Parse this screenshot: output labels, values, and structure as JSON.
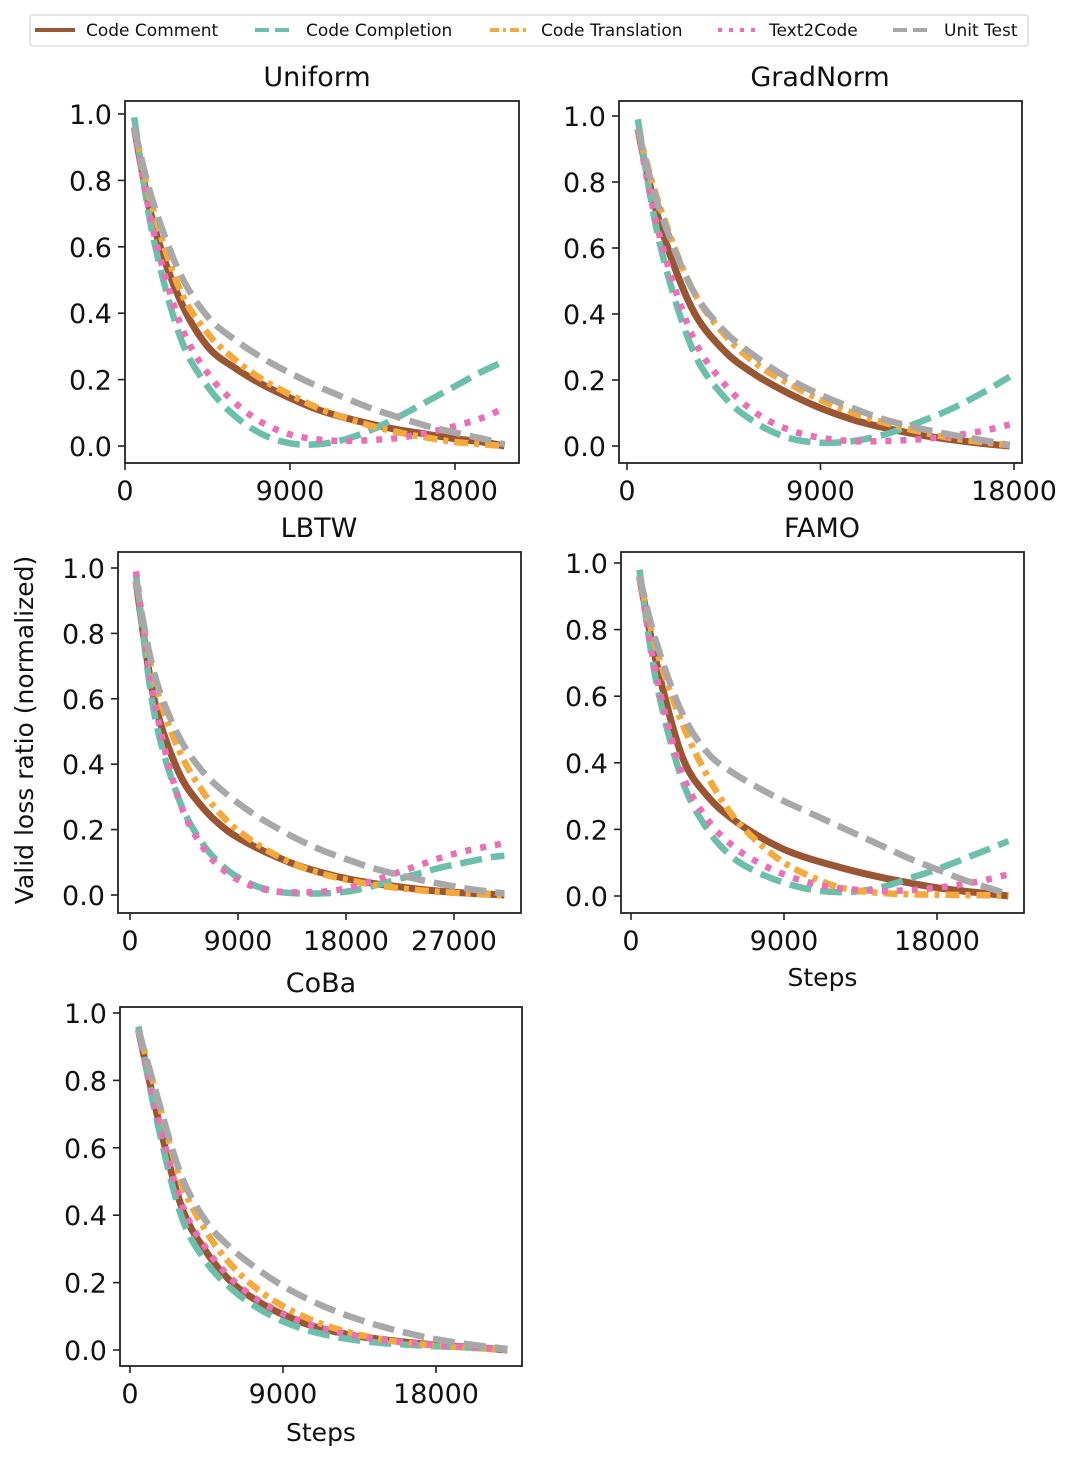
{
  "chart_data": {
    "type": "line",
    "ylabel": "Valid loss ratio (normalized)",
    "xlabel": "Steps",
    "legend": {
      "placement": "top",
      "entries": [
        {
          "name": "Code Comment",
          "color": "#9a5533",
          "style": "solid"
        },
        {
          "name": "Code Completion",
          "color": "#6bbfab",
          "style": "dashed"
        },
        {
          "name": "Code Translation",
          "color": "#f3a93c",
          "style": "dashdot"
        },
        {
          "name": "Text2Code",
          "color": "#ea6fb4",
          "style": "dotted"
        },
        {
          "name": "Unit Test",
          "color": "#a8a8a8",
          "style": "dashed"
        }
      ]
    },
    "panels": [
      {
        "title": "Uniform",
        "xlabel": "",
        "xticks": [
          0,
          9000,
          18000
        ],
        "xtick_labels": [
          "0",
          "9000",
          "18000"
        ],
        "yticks": [
          0.0,
          0.2,
          0.4,
          0.6,
          0.8,
          1.0
        ],
        "ytick_labels": [
          "0.0",
          "0.2",
          "0.4",
          "0.6",
          "0.8",
          "1.0"
        ],
        "xlim": [
          -500,
          21500
        ],
        "ylim": [
          -0.05,
          1.05
        ],
        "x": [
          500,
          1500,
          3000,
          4500,
          6000,
          7500,
          9000,
          10500,
          12000,
          13500,
          15000,
          16500,
          18000,
          19500,
          20700
        ],
        "series": [
          {
            "name": "Code Comment",
            "values": [
              0.96,
              0.68,
              0.44,
              0.3,
              0.235,
              0.185,
              0.145,
              0.11,
              0.085,
              0.065,
              0.048,
              0.035,
              0.022,
              0.012,
              0.0
            ]
          },
          {
            "name": "Code Completion",
            "values": [
              0.99,
              0.64,
              0.33,
              0.18,
              0.09,
              0.035,
              0.008,
              0.005,
              0.02,
              0.05,
              0.09,
              0.135,
              0.18,
              0.225,
              0.255
            ]
          },
          {
            "name": "Code Translation",
            "values": [
              0.96,
              0.72,
              0.47,
              0.34,
              0.26,
              0.2,
              0.155,
              0.115,
              0.085,
              0.06,
              0.04,
              0.025,
              0.012,
              0.005,
              0.0
            ]
          },
          {
            "name": "Text2Code",
            "values": [
              0.96,
              0.66,
              0.37,
              0.22,
              0.13,
              0.07,
              0.035,
              0.02,
              0.015,
              0.018,
              0.025,
              0.04,
              0.06,
              0.085,
              0.115
            ]
          },
          {
            "name": "Unit Test",
            "values": [
              0.96,
              0.74,
              0.52,
              0.39,
              0.32,
              0.265,
              0.22,
              0.18,
              0.145,
              0.112,
              0.085,
              0.06,
              0.04,
              0.022,
              0.005
            ]
          }
        ]
      },
      {
        "title": "GradNorm",
        "xlabel": "",
        "xticks": [
          0,
          9000,
          18000
        ],
        "xtick_labels": [
          "0",
          "9000",
          "18000"
        ],
        "yticks": [
          0.0,
          0.2,
          0.4,
          0.6,
          0.8,
          1.0
        ],
        "ytick_labels": [
          "0.0",
          "0.2",
          "0.4",
          "0.6",
          "0.8",
          "1.0"
        ],
        "xlim": [
          -400,
          18400
        ],
        "ylim": [
          -0.05,
          1.05
        ],
        "x": [
          500,
          1500,
          3000,
          4500,
          6000,
          7500,
          9000,
          10500,
          12000,
          13500,
          15000,
          16500,
          17800
        ],
        "series": [
          {
            "name": "Code Comment",
            "values": [
              0.96,
              0.68,
              0.42,
              0.29,
              0.215,
              0.16,
              0.115,
              0.08,
              0.055,
              0.035,
              0.02,
              0.008,
              0.0
            ]
          },
          {
            "name": "Code Completion",
            "values": [
              0.99,
              0.62,
              0.3,
              0.15,
              0.07,
              0.025,
              0.01,
              0.015,
              0.035,
              0.07,
              0.11,
              0.16,
              0.21
            ]
          },
          {
            "name": "Code Translation",
            "values": [
              0.96,
              0.73,
              0.48,
              0.34,
              0.25,
              0.19,
              0.14,
              0.1,
              0.07,
              0.045,
              0.025,
              0.012,
              0.002
            ]
          },
          {
            "name": "Text2Code",
            "values": [
              0.96,
              0.64,
              0.34,
              0.19,
              0.1,
              0.05,
              0.025,
              0.015,
              0.015,
              0.02,
              0.03,
              0.045,
              0.065
            ]
          },
          {
            "name": "Unit Test",
            "values": [
              0.96,
              0.72,
              0.48,
              0.35,
              0.27,
              0.205,
              0.155,
              0.115,
              0.08,
              0.055,
              0.035,
              0.018,
              0.003
            ]
          }
        ]
      },
      {
        "title": "LBTW",
        "xlabel": "",
        "xticks": [
          0,
          9000,
          18000,
          27000
        ],
        "xtick_labels": [
          "0",
          "9000",
          "18000",
          "27000"
        ],
        "yticks": [
          0.0,
          0.2,
          0.4,
          0.6,
          0.8,
          1.0
        ],
        "ytick_labels": [
          "0.0",
          "0.2",
          "0.4",
          "0.6",
          "0.8",
          "1.0"
        ],
        "xlim": [
          -1000,
          32500
        ],
        "ylim": [
          -0.05,
          1.05
        ],
        "x": [
          500,
          2000,
          4000,
          6000,
          8000,
          10000,
          12000,
          14000,
          16000,
          18000,
          20000,
          22000,
          24000,
          26000,
          28000,
          30000,
          31200
        ],
        "series": [
          {
            "name": "Code Comment",
            "values": [
              0.96,
              0.6,
              0.38,
              0.27,
              0.2,
              0.155,
              0.12,
              0.09,
              0.068,
              0.05,
              0.037,
              0.027,
              0.018,
              0.011,
              0.006,
              0.002,
              0.0
            ]
          },
          {
            "name": "Code Completion",
            "values": [
              0.98,
              0.56,
              0.3,
              0.16,
              0.08,
              0.035,
              0.012,
              0.005,
              0.005,
              0.01,
              0.025,
              0.045,
              0.065,
              0.085,
              0.1,
              0.115,
              0.12
            ]
          },
          {
            "name": "Code Translation",
            "values": [
              0.96,
              0.66,
              0.45,
              0.32,
              0.23,
              0.17,
              0.125,
              0.09,
              0.065,
              0.047,
              0.033,
              0.023,
              0.015,
              0.009,
              0.005,
              0.002,
              0.0
            ]
          },
          {
            "name": "Text2Code",
            "values": [
              0.99,
              0.6,
              0.3,
              0.15,
              0.07,
              0.03,
              0.012,
              0.008,
              0.01,
              0.02,
              0.04,
              0.065,
              0.09,
              0.115,
              0.135,
              0.15,
              0.158
            ]
          },
          {
            "name": "Unit Test",
            "values": [
              0.96,
              0.68,
              0.49,
              0.38,
              0.31,
              0.255,
              0.21,
              0.17,
              0.137,
              0.11,
              0.085,
              0.065,
              0.048,
              0.033,
              0.02,
              0.01,
              0.005
            ]
          }
        ]
      },
      {
        "title": "FAMO",
        "xlabel": "Steps",
        "xticks": [
          0,
          9000,
          18000
        ],
        "xtick_labels": [
          "0",
          "9000",
          "18000"
        ],
        "yticks": [
          0.0,
          0.2,
          0.4,
          0.6,
          0.8,
          1.0
        ],
        "ytick_labels": [
          "0.0",
          "0.2",
          "0.4",
          "0.6",
          "0.8",
          "1.0"
        ],
        "xlim": [
          -600,
          22500
        ],
        "ylim": [
          -0.05,
          1.05
        ],
        "x": [
          500,
          1500,
          3000,
          4500,
          6000,
          7500,
          9000,
          10500,
          12000,
          13500,
          15000,
          16500,
          18000,
          19500,
          21000,
          22200
        ],
        "series": [
          {
            "name": "Code Comment",
            "values": [
              0.96,
              0.7,
              0.42,
              0.3,
              0.23,
              0.18,
              0.14,
              0.112,
              0.09,
              0.07,
              0.053,
              0.038,
              0.025,
              0.015,
              0.007,
              0.0
            ]
          },
          {
            "name": "Code Completion",
            "values": [
              0.98,
              0.64,
              0.35,
              0.2,
              0.115,
              0.07,
              0.04,
              0.02,
              0.012,
              0.015,
              0.03,
              0.055,
              0.08,
              0.11,
              0.14,
              0.165
            ]
          },
          {
            "name": "Code Translation",
            "values": [
              0.96,
              0.74,
              0.52,
              0.36,
              0.24,
              0.16,
              0.1,
              0.06,
              0.03,
              0.015,
              0.008,
              0.005,
              0.004,
              0.003,
              0.002,
              0.0
            ]
          },
          {
            "name": "Text2Code",
            "values": [
              0.96,
              0.66,
              0.37,
              0.23,
              0.15,
              0.1,
              0.065,
              0.04,
              0.025,
              0.018,
              0.015,
              0.018,
              0.025,
              0.035,
              0.05,
              0.065
            ]
          },
          {
            "name": "Unit Test",
            "values": [
              0.96,
              0.76,
              0.55,
              0.43,
              0.37,
              0.325,
              0.285,
              0.25,
              0.215,
              0.18,
              0.145,
              0.11,
              0.08,
              0.05,
              0.025,
              0.005
            ]
          }
        ]
      },
      {
        "title": "CoBa",
        "xlabel": "Steps",
        "xticks": [
          0,
          9000,
          18000
        ],
        "xtick_labels": [
          "0",
          "9000",
          "18000"
        ],
        "yticks": [
          0.0,
          0.2,
          0.4,
          0.6,
          0.8,
          1.0
        ],
        "ytick_labels": [
          "0.0",
          "0.2",
          "0.4",
          "0.6",
          "0.8",
          "1.0"
        ],
        "xlim": [
          -600,
          22500
        ],
        "ylim": [
          -0.05,
          1.05
        ],
        "x": [
          500,
          1500,
          3000,
          4500,
          6000,
          7500,
          9000,
          10500,
          12000,
          13500,
          15000,
          16500,
          18000,
          19500,
          21000,
          22200
        ],
        "series": [
          {
            "name": "Code Comment",
            "values": [
              0.95,
              0.72,
              0.43,
              0.29,
              0.2,
              0.145,
              0.105,
              0.075,
              0.055,
              0.04,
              0.03,
              0.022,
              0.015,
              0.01,
              0.005,
              0.0
            ]
          },
          {
            "name": "Code Completion",
            "values": [
              0.96,
              0.7,
              0.4,
              0.26,
              0.18,
              0.125,
              0.085,
              0.058,
              0.04,
              0.028,
              0.02,
              0.015,
              0.011,
              0.008,
              0.005,
              0.003
            ]
          },
          {
            "name": "Code Translation",
            "values": [
              0.95,
              0.77,
              0.5,
              0.35,
              0.25,
              0.18,
              0.13,
              0.093,
              0.065,
              0.045,
              0.03,
              0.02,
              0.013,
              0.008,
              0.004,
              0.0
            ]
          },
          {
            "name": "Text2Code",
            "values": [
              0.95,
              0.72,
              0.44,
              0.3,
              0.21,
              0.15,
              0.108,
              0.077,
              0.055,
              0.04,
              0.029,
              0.021,
              0.015,
              0.01,
              0.005,
              0.002
            ]
          },
          {
            "name": "Unit Test",
            "values": [
              0.95,
              0.77,
              0.52,
              0.38,
              0.3,
              0.24,
              0.19,
              0.15,
              0.117,
              0.09,
              0.067,
              0.048,
              0.032,
              0.02,
              0.01,
              0.003
            ]
          }
        ]
      }
    ]
  }
}
